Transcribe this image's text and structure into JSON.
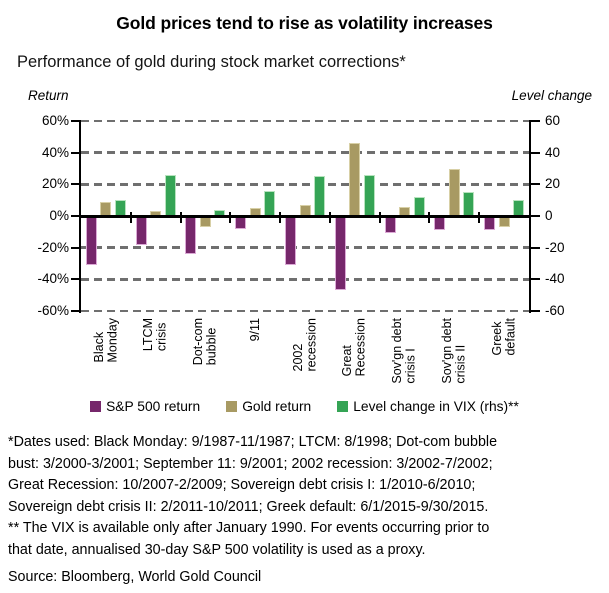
{
  "title": "Gold prices tend to rise as volatility increases",
  "subtitle": "Performance of gold during stock market corrections*",
  "chart_data": {
    "type": "bar",
    "left_axis_title": "Return",
    "right_axis_title": "Level change",
    "categories": [
      "Black\nMonday",
      "LTCM\ncrisis",
      "Dot-com\nbubble",
      "9/11",
      "2002\nrecession",
      "Great\nRecession",
      "Sov'gn debt\ncrisis I",
      "Sov'gn debt\ncrisis II",
      "Greek\ndefault"
    ],
    "series": [
      {
        "key": "sp500",
        "name": "S&P 500 return",
        "axis": "left",
        "unit": "%",
        "color": "#76276B",
        "border": "#DCA9D6",
        "values": [
          -31,
          -18,
          -24,
          -8,
          -31,
          -47,
          -11,
          -9,
          -9
        ]
      },
      {
        "key": "gold",
        "name": "Gold return",
        "axis": "left",
        "unit": "%",
        "color": "#A89A63",
        "border": "#D8D0A6",
        "values": [
          9,
          3,
          -7,
          5,
          7,
          46,
          6,
          30,
          -7
        ]
      },
      {
        "key": "vix",
        "name": "Level change in VIX (rhs)**",
        "axis": "right",
        "unit": "points",
        "color": "#35A455",
        "border": "#B7E3BE",
        "values": [
          10,
          26,
          4,
          16,
          25,
          26,
          12,
          15,
          10
        ]
      }
    ],
    "y_tick_values": [
      60,
      40,
      20,
      0,
      -20,
      -40,
      -60
    ],
    "y_left_tick_labels": [
      "60%",
      "40%",
      "20%",
      "0%",
      "-20%",
      "-40%",
      "-60%"
    ],
    "y_right_tick_labels": [
      "60",
      "40",
      "20",
      "0",
      "-20",
      "-40",
      "-60"
    ],
    "ylim_left": [
      -60,
      60
    ],
    "ylim_right": [
      -60,
      60
    ],
    "grid": "horizontal-dashed",
    "grid_color": "#6f6f6f",
    "axis_color": "#000000",
    "legend_position": "bottom"
  },
  "footnotes": {
    "dates_note": "*Dates used: Black Monday: 9/1987-11/1987; LTCM: 8/1998; Dot-com bubble\nbust: 3/2000-3/2001; September 11: 9/2001; 2002 recession: 3/2002-7/2002;\nGreat Recession: 10/2007-2/2009; Sovereign debt crisis I: 1/2010-6/2010;\nSovereign debt crisis II: 2/2011-10/2011; Greek default: 6/1/2015-9/30/2015.",
    "vix_note": "** The VIX is available only after January 1990. For events occurring prior to\nthat date, annualised 30-day S&P 500 volatility is used as a proxy.",
    "source": "Source: Bloomberg, World Gold Council"
  }
}
